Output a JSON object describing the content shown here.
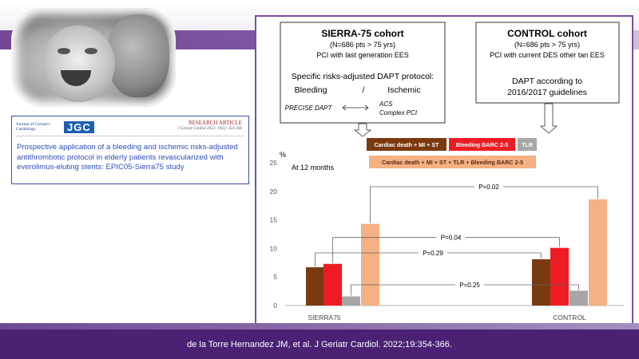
{
  "slide": {
    "citation": "de la Torre Hernandez JM, et al. J Geriatr Cardiol. 2022;19:354-366."
  },
  "article": {
    "journal_name": "Journal of Geriatric Cardiology",
    "logo_text": "JGC",
    "type": "RESEARCH ARTICLE",
    "reference": "J Geriatr Cardiol 2022; 19(5): 354–366",
    "title": "Prospective application of a bleeding and ischemic risks-adjusted antithrombotic protocol in elderly patients revascularized with everolimus-eluting stents: EPIC05-Sierra75 study"
  },
  "cohorts": {
    "sierra": {
      "title": "SIERRA-75 cohort",
      "count": "(N=686 pts > 75 yrs)",
      "stent": "PCI with last generation EES",
      "protocol": "Specific risks-adjusted DAPT protocol:",
      "bleeding": "Bleeding",
      "slash": "/",
      "ischemic": "Ischemic",
      "precise": "PRECISE DAPT",
      "acs": "ACS",
      "complex": "Complex PCI"
    },
    "control": {
      "title": "CONTROL cohort",
      "count": "(N=686 pts > 75 yrs)",
      "stent": "PCI with current DES other tan EES",
      "dapt_line1": "DAPT according to",
      "dapt_line2": "2016/2017 guidelines"
    }
  },
  "colors": {
    "cardiac": "#7a3a10",
    "bleeding": "#ee1c24",
    "tlr": "#a6a6a6",
    "composite": "#f4b183",
    "panel_border": "#7a4f9c",
    "purple": "#4b2173"
  },
  "chart_data": {
    "type": "bar",
    "ylabel": "%",
    "annotation": "At 12 months",
    "ylim": [
      0,
      25
    ],
    "yticks": [
      0,
      5,
      10,
      15,
      20,
      25
    ],
    "categories": [
      "SIERRA75",
      "CONTROL"
    ],
    "series": [
      {
        "name": "Cardiac death + MI + ST",
        "color": "#7a3a10",
        "values": [
          6.7,
          8.1
        ]
      },
      {
        "name": "Bleeding BARC 2-5",
        "color": "#ee1c24",
        "values": [
          7.3,
          10.1
        ]
      },
      {
        "name": "TLR",
        "color": "#a6a6a6",
        "values": [
          1.6,
          2.6
        ]
      },
      {
        "name": "Cardiac death + MI + ST + TLR + Bleeding BARC 2-5",
        "color": "#f4b183",
        "values": [
          14.3,
          18.6
        ]
      }
    ],
    "legend_position": "top",
    "p_values": [
      {
        "label": "P=0.02",
        "series": 3
      },
      {
        "label": "P=0.04",
        "series": 1
      },
      {
        "label": "P=0.29",
        "series": 0
      },
      {
        "label": "P=0.25",
        "series": 2
      }
    ]
  }
}
